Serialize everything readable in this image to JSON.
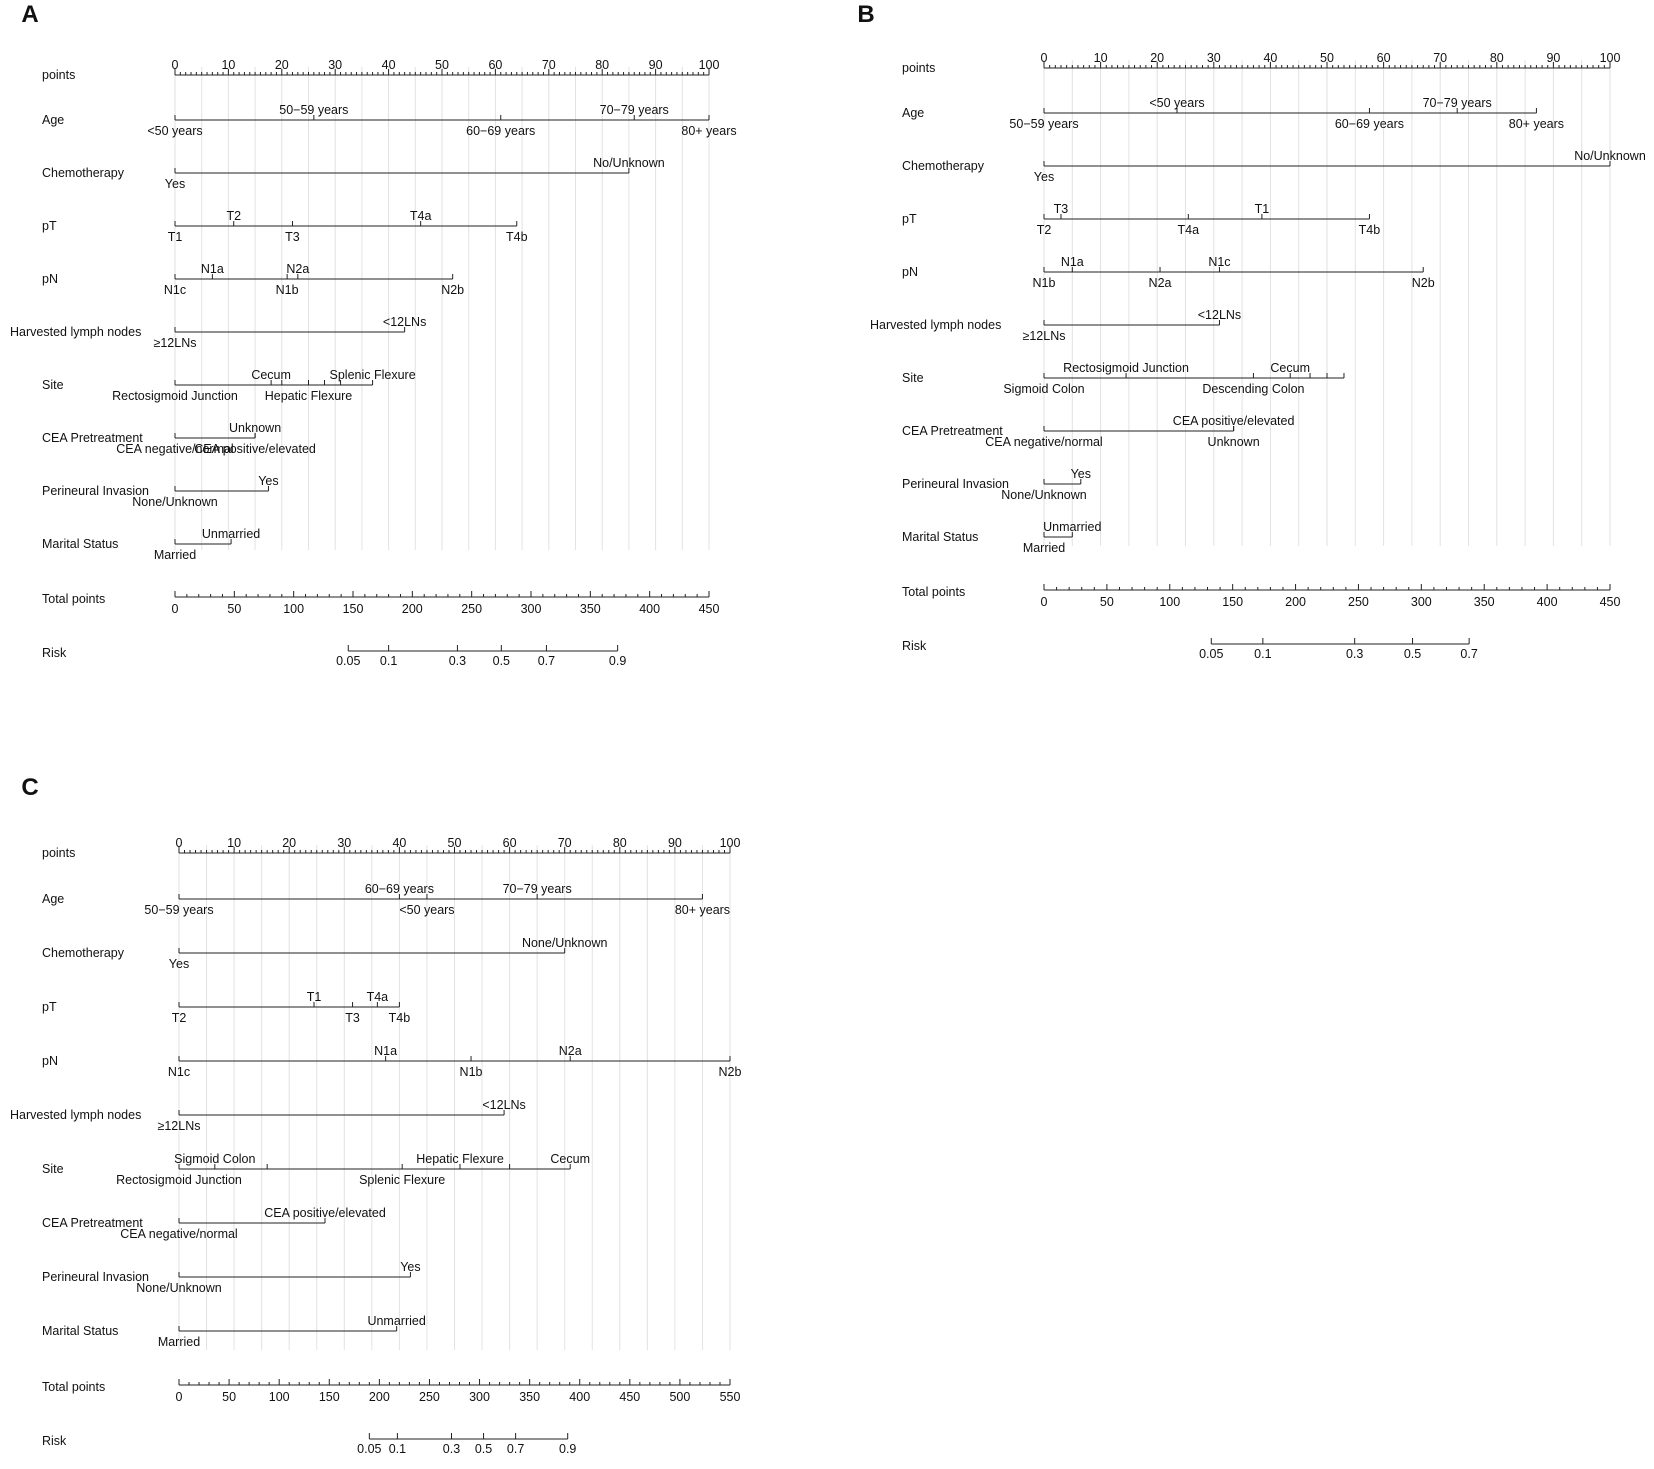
{
  "chart_data": [
    {
      "type": "nomogram",
      "panel_label": "A",
      "points_axis": {
        "label": "points",
        "range": [
          0,
          100
        ],
        "ticks": [
          0,
          10,
          20,
          30,
          40,
          50,
          60,
          70,
          80,
          90,
          100
        ]
      },
      "variables": [
        {
          "name": "Age",
          "levels": [
            {
              "label": "<50 years",
              "points": 0,
              "side": "below"
            },
            {
              "label": "50−59 years",
              "points": 26,
              "side": "above"
            },
            {
              "label": "60−69 years",
              "points": 61,
              "side": "below"
            },
            {
              "label": "70−79 years",
              "points": 86,
              "side": "above"
            },
            {
              "label": "80+ years",
              "points": 100,
              "side": "below"
            }
          ]
        },
        {
          "name": "Chemotherapy",
          "levels": [
            {
              "label": "Yes",
              "points": 0,
              "side": "below"
            },
            {
              "label": "No/Unknown",
              "points": 85,
              "side": "above"
            }
          ]
        },
        {
          "name": "pT",
          "levels": [
            {
              "label": "T1",
              "points": 0,
              "side": "below"
            },
            {
              "label": "T2",
              "points": 11,
              "side": "above"
            },
            {
              "label": "T3",
              "points": 22,
              "side": "below"
            },
            {
              "label": "T4a",
              "points": 46,
              "side": "above"
            },
            {
              "label": "T4b",
              "points": 64,
              "side": "below"
            }
          ]
        },
        {
          "name": "pN",
          "levels": [
            {
              "label": "N1c",
              "points": 0,
              "side": "below"
            },
            {
              "label": "N1a",
              "points": 7,
              "side": "above"
            },
            {
              "label": "N1b",
              "points": 21,
              "side": "below"
            },
            {
              "label": "N2a",
              "points": 23,
              "side": "above"
            },
            {
              "label": "N2b",
              "points": 52,
              "side": "below"
            }
          ]
        },
        {
          "name": "Harvested lymph nodes",
          "levels": [
            {
              "label": "≥12LNs",
              "points": 0,
              "side": "below"
            },
            {
              "label": "<12LNs",
              "points": 43,
              "side": "above"
            }
          ]
        },
        {
          "name": "Site",
          "levels": [
            {
              "label": "Rectosigmoid  Junction",
              "points": 0,
              "side": "below"
            },
            {
              "label": "Cecum",
              "points": 18,
              "side": "above"
            },
            {
              "label": "",
              "points": 20,
              "side": "below"
            },
            {
              "label": "Hepatic Flexure",
              "points": 25,
              "side": "below"
            },
            {
              "label": "",
              "points": 28,
              "side": "below"
            },
            {
              "label": "",
              "points": 31,
              "side": "below"
            },
            {
              "label": "Splenic Flexure",
              "points": 37,
              "side": "above"
            }
          ]
        },
        {
          "name": "CEA Pretreatment",
          "levels": [
            {
              "label": "CEA negative/normal",
              "points": 0,
              "side": "below"
            },
            {
              "label": "CEA positive/elevated",
              "points": 15,
              "side": "below"
            },
            {
              "label": "Unknown",
              "points": 15,
              "side": "above"
            }
          ]
        },
        {
          "name": "Perineural Invasion",
          "levels": [
            {
              "label": "None/Unknown",
              "points": 0,
              "side": "below"
            },
            {
              "label": "Yes",
              "points": 17.5,
              "side": "above"
            }
          ]
        },
        {
          "name": "Marital Status",
          "levels": [
            {
              "label": "Married",
              "points": 0,
              "side": "below"
            },
            {
              "label": "Unmarried",
              "points": 10.5,
              "side": "above"
            }
          ]
        }
      ],
      "total_points_axis": {
        "label": "Total points",
        "range": [
          0,
          450
        ],
        "ticks": [
          0,
          50,
          100,
          150,
          200,
          250,
          300,
          350,
          400,
          450
        ]
      },
      "risk_axis": {
        "label": "Risk",
        "ticks": [
          {
            "label": "0.05",
            "total_points": 146
          },
          {
            "label": "0.1",
            "total_points": 180
          },
          {
            "label": "0.3",
            "total_points": 238
          },
          {
            "label": "0.5",
            "total_points": 275
          },
          {
            "label": "0.7",
            "total_points": 313
          },
          {
            "label": "0.9",
            "total_points": 373
          }
        ]
      }
    },
    {
      "type": "nomogram",
      "panel_label": "B",
      "points_axis": {
        "label": "points",
        "range": [
          0,
          100
        ],
        "ticks": [
          0,
          10,
          20,
          30,
          40,
          50,
          60,
          70,
          80,
          90,
          100
        ]
      },
      "variables": [
        {
          "name": "Age",
          "levels": [
            {
              "label": "50−59 years",
              "points": 0,
              "side": "below"
            },
            {
              "label": "<50 years",
              "points": 23.5,
              "side": "above"
            },
            {
              "label": "60−69 years",
              "points": 57.5,
              "side": "below"
            },
            {
              "label": "70−79 years",
              "points": 73,
              "side": "above"
            },
            {
              "label": "80+ years",
              "points": 87,
              "side": "below"
            }
          ]
        },
        {
          "name": "Chemotherapy",
          "levels": [
            {
              "label": "Yes",
              "points": 0,
              "side": "below"
            },
            {
              "label": "No/Unknown",
              "points": 100,
              "side": "above"
            }
          ]
        },
        {
          "name": "pT",
          "levels": [
            {
              "label": "T2",
              "points": 0,
              "side": "below"
            },
            {
              "label": "T3",
              "points": 3,
              "side": "above"
            },
            {
              "label": "T4a",
              "points": 25.5,
              "side": "below"
            },
            {
              "label": "T1",
              "points": 38.5,
              "side": "above"
            },
            {
              "label": "T4b",
              "points": 57.5,
              "side": "below"
            }
          ]
        },
        {
          "name": "pN",
          "levels": [
            {
              "label": "N1b",
              "points": 0,
              "side": "below"
            },
            {
              "label": "N1a",
              "points": 5,
              "side": "above"
            },
            {
              "label": "N2a",
              "points": 20.5,
              "side": "below"
            },
            {
              "label": "N1c",
              "points": 31,
              "side": "above"
            },
            {
              "label": "N2b",
              "points": 67,
              "side": "below"
            }
          ]
        },
        {
          "name": "Harvested lymph nodes",
          "levels": [
            {
              "label": "≥12LNs",
              "points": 0,
              "side": "below"
            },
            {
              "label": "<12LNs",
              "points": 31,
              "side": "above"
            }
          ]
        },
        {
          "name": "Site",
          "levels": [
            {
              "label": "Sigmoid Colon",
              "points": 0,
              "side": "below"
            },
            {
              "label": "Rectosigmoid  Junction",
              "points": 14.5,
              "side": "above"
            },
            {
              "label": "Descending  Colon",
              "points": 37,
              "side": "below"
            },
            {
              "label": "Cecum",
              "points": 43.5,
              "side": "above"
            },
            {
              "label": "",
              "points": 47,
              "side": "below"
            },
            {
              "label": "",
              "points": 50,
              "side": "below"
            },
            {
              "label": "",
              "points": 53,
              "side": "below"
            }
          ]
        },
        {
          "name": "CEA Pretreatment",
          "levels": [
            {
              "label": "CEA negative/normal",
              "points": 0,
              "side": "below"
            },
            {
              "label": "CEA positive/elevated",
              "points": 33.5,
              "side": "above"
            },
            {
              "label": "Unknown",
              "points": 33.5,
              "side": "below"
            }
          ]
        },
        {
          "name": "Perineural Invasion",
          "levels": [
            {
              "label": "None/Unknown",
              "points": 0,
              "side": "below"
            },
            {
              "label": "Yes",
              "points": 6.5,
              "side": "above"
            }
          ]
        },
        {
          "name": "Marital Status",
          "levels": [
            {
              "label": "Married",
              "points": 0,
              "side": "below"
            },
            {
              "label": "Unmarried",
              "points": 5,
              "side": "above"
            }
          ]
        }
      ],
      "total_points_axis": {
        "label": "Total points",
        "range": [
          0,
          450
        ],
        "ticks": [
          0,
          50,
          100,
          150,
          200,
          250,
          300,
          350,
          400,
          450
        ]
      },
      "risk_axis": {
        "label": "Risk",
        "ticks": [
          {
            "label": "0.05",
            "total_points": 133
          },
          {
            "label": "0.1",
            "total_points": 174
          },
          {
            "label": "0.3",
            "total_points": 247
          },
          {
            "label": "0.5",
            "total_points": 293
          },
          {
            "label": "0.7",
            "total_points": 338
          }
        ]
      }
    },
    {
      "type": "nomogram",
      "panel_label": "C",
      "points_axis": {
        "label": "points",
        "range": [
          0,
          100
        ],
        "ticks": [
          0,
          10,
          20,
          30,
          40,
          50,
          60,
          70,
          80,
          90,
          100
        ]
      },
      "variables": [
        {
          "name": "Age",
          "levels": [
            {
              "label": "50−59 years",
              "points": 0,
              "side": "below"
            },
            {
              "label": "60−69 years",
              "points": 40,
              "side": "above"
            },
            {
              "label": "<50 years",
              "points": 45,
              "side": "below"
            },
            {
              "label": "70−79 years",
              "points": 65,
              "side": "above"
            },
            {
              "label": "80+ years",
              "points": 95,
              "side": "below"
            }
          ]
        },
        {
          "name": "Chemotherapy",
          "levels": [
            {
              "label": "Yes",
              "points": 0,
              "side": "below"
            },
            {
              "label": "None/Unknown",
              "points": 70,
              "side": "above"
            }
          ]
        },
        {
          "name": "pT",
          "levels": [
            {
              "label": "T2",
              "points": 0,
              "side": "below"
            },
            {
              "label": "T1",
              "points": 24.5,
              "side": "above"
            },
            {
              "label": "T3",
              "points": 31.5,
              "side": "below"
            },
            {
              "label": "T4a",
              "points": 36,
              "side": "above"
            },
            {
              "label": "T4b",
              "points": 40,
              "side": "below"
            }
          ]
        },
        {
          "name": "pN",
          "levels": [
            {
              "label": "N1c",
              "points": 0,
              "side": "below"
            },
            {
              "label": "N1a",
              "points": 37.5,
              "side": "above"
            },
            {
              "label": "N1b",
              "points": 53,
              "side": "below"
            },
            {
              "label": "N2a",
              "points": 71,
              "side": "above"
            },
            {
              "label": "N2b",
              "points": 100,
              "side": "below"
            }
          ]
        },
        {
          "name": "Harvested lymph nodes",
          "levels": [
            {
              "label": "≥12LNs",
              "points": 0,
              "side": "below"
            },
            {
              "label": "<12LNs",
              "points": 59,
              "side": "above"
            }
          ]
        },
        {
          "name": "Site",
          "levels": [
            {
              "label": "Rectosigmoid Junction",
              "points": 0,
              "side": "below"
            },
            {
              "label": "Sigmoid Colon",
              "points": 6.5,
              "side": "above"
            },
            {
              "label": "",
              "points": 16,
              "side": "below"
            },
            {
              "label": "Splenic Flexure",
              "points": 40.5,
              "side": "below"
            },
            {
              "label": "Hepatic Flexure",
              "points": 51,
              "side": "above"
            },
            {
              "label": "",
              "points": 60,
              "side": "below"
            },
            {
              "label": "Cecum",
              "points": 71,
              "side": "above"
            }
          ]
        },
        {
          "name": "CEA Pretreatment",
          "levels": [
            {
              "label": "CEA negative/normal",
              "points": 0,
              "side": "below"
            },
            {
              "label": "CEA positive/elevated",
              "points": 26.5,
              "side": "above"
            }
          ]
        },
        {
          "name": "Perineural Invasion",
          "levels": [
            {
              "label": "None/Unknown",
              "points": 0,
              "side": "below"
            },
            {
              "label": "Yes",
              "points": 42,
              "side": "above"
            }
          ]
        },
        {
          "name": "Marital Status",
          "levels": [
            {
              "label": "Married",
              "points": 0,
              "side": "below"
            },
            {
              "label": "Unmarried",
              "points": 39.5,
              "side": "above"
            }
          ]
        }
      ],
      "total_points_axis": {
        "label": "Total points",
        "range": [
          0,
          550
        ],
        "ticks": [
          0,
          50,
          100,
          150,
          200,
          250,
          300,
          350,
          400,
          450,
          500,
          550
        ]
      },
      "risk_axis": {
        "label": "Risk",
        "ticks": [
          {
            "label": "0.05",
            "total_points": 190
          },
          {
            "label": "0.1",
            "total_points": 218
          },
          {
            "label": "0.3",
            "total_points": 272
          },
          {
            "label": "0.5",
            "total_points": 304
          },
          {
            "label": "0.7",
            "total_points": 336
          },
          {
            "label": "0.9",
            "total_points": 388
          }
        ]
      }
    }
  ]
}
